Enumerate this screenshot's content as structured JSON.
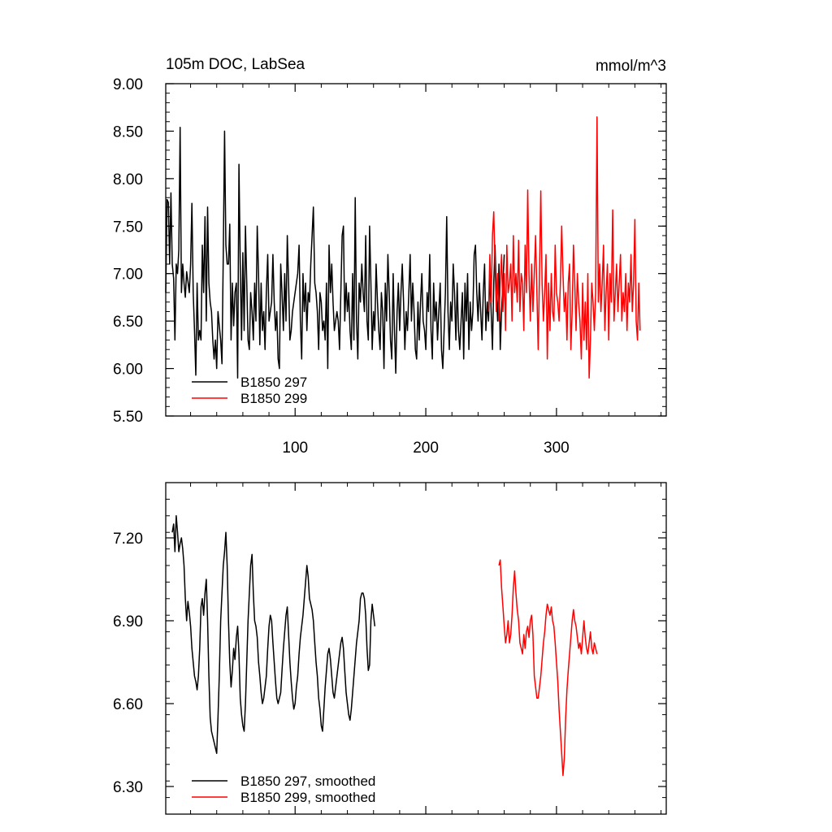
{
  "chart_data": [
    {
      "type": "line",
      "title": "105m DOC, LabSea",
      "units": "mmol/m^3",
      "xlabel": "",
      "ylabel": "",
      "xlim": [
        1,
        384
      ],
      "ylim": [
        5.5,
        9.0
      ],
      "xticks": [
        100,
        200,
        300
      ],
      "xticklabels": [
        "100",
        "200",
        "300"
      ],
      "yticks": [
        5.5,
        6.0,
        6.5,
        7.0,
        7.5,
        8.0,
        8.5,
        9.0
      ],
      "yticklabels": [
        "5.50",
        "6.00",
        "6.50",
        "7.00",
        "7.50",
        "8.00",
        "8.50",
        "9.00"
      ],
      "legend_position": "bottom-left",
      "series": [
        {
          "name": "B1850 297",
          "color": "#000000",
          "x_start": 1,
          "values": [
            6.8,
            7.78,
            7.75,
            7.1,
            7.85,
            7.1,
            6.95,
            6.3,
            7.1,
            7.0,
            7.25,
            8.54,
            6.8,
            7.1,
            6.9,
            6.75,
            7.02,
            6.92,
            6.8,
            7.1,
            7.74,
            6.8,
            6.4,
            5.93,
            6.9,
            6.3,
            6.4,
            6.3,
            7.3,
            6.8,
            7.6,
            6.5,
            7.7,
            6.9,
            6.7,
            6.6,
            6.3,
            6.1,
            6.3,
            6.0,
            6.6,
            6.45,
            6.3,
            6.05,
            7.2,
            8.5,
            7.3,
            7.1,
            7.1,
            7.52,
            6.3,
            6.9,
            6.45,
            6.8,
            6.9,
            5.9,
            8.15,
            7.1,
            6.3,
            7.22,
            6.4,
            7.5,
            6.9,
            6.3,
            6.2,
            6.8,
            6.6,
            6.3,
            6.9,
            6.5,
            7.5,
            7.0,
            6.25,
            6.9,
            6.4,
            6.6,
            6.2,
            6.8,
            7.2,
            6.5,
            6.6,
            6.7,
            7.2,
            6.7,
            6.4,
            6.6,
            6.1,
            6.0,
            7.1,
            6.8,
            6.4,
            7.0,
            6.5,
            7.4,
            6.9,
            6.3,
            6.4,
            6.6,
            6.7,
            6.8,
            6.9,
            7.0,
            7.3,
            6.5,
            6.1,
            7.0,
            6.6,
            6.9,
            6.4,
            6.8,
            6.7,
            7.1,
            7.4,
            7.7,
            6.9,
            6.8,
            6.6,
            6.2,
            6.8,
            6.7,
            6.4,
            6.5,
            6.3,
            6.9,
            6.0,
            7.3,
            6.8,
            7.1,
            6.7,
            6.4,
            6.5,
            6.6,
            6.5,
            6.2,
            6.8,
            7.4,
            7.5,
            6.5,
            6.9,
            6.6,
            6.8,
            6.4,
            6.2,
            7.0,
            6.3,
            7.8,
            6.5,
            6.1,
            6.9,
            6.7,
            7.1,
            6.8,
            6.6,
            7.4,
            6.5,
            6.3,
            7.5,
            6.9,
            6.2,
            6.6,
            6.4,
            7.1,
            6.7,
            6.4,
            6.2,
            6.8,
            6.6,
            6.0,
            6.9,
            6.5,
            7.2,
            6.8,
            6.3,
            6.1,
            7.0,
            6.4,
            5.95,
            6.6,
            6.9,
            6.4,
            6.8,
            7.1,
            6.7,
            6.2,
            6.6,
            6.4,
            6.8,
            7.2,
            6.5,
            6.9,
            6.6,
            6.2,
            6.1,
            6.7,
            6.3,
            6.7,
            7.0,
            6.5,
            6.4,
            6.2,
            6.8,
            6.6,
            7.2,
            6.4,
            6.1,
            6.9,
            6.5,
            6.7,
            6.3,
            6.6,
            6.9,
            6.2,
            6.0,
            6.4,
            6.8,
            7.6,
            6.6,
            6.2,
            6.7,
            6.5,
            7.1,
            6.8,
            6.3,
            6.9,
            6.4,
            6.2,
            6.5,
            6.8,
            6.1,
            6.9,
            6.5,
            7.0,
            6.2,
            6.7,
            6.4,
            6.6,
            7.2,
            7.3,
            6.8,
            6.5,
            6.9,
            6.6,
            6.3,
            6.8,
            7.1,
            6.4,
            6.7,
            6.5,
            7.0,
            6.6,
            6.2,
            6.9,
            7.3,
            6.8,
            6.5,
            7.1,
            6.2,
            6.6,
            6.9,
            7.2
          ]
        },
        {
          "name": "B1850 299",
          "color": "#ff0000",
          "x_start": 248,
          "values": [
            6.6,
            7.2,
            6.7,
            7.4,
            7.65,
            7.1,
            6.6,
            7.0,
            6.5,
            6.9,
            7.2,
            6.6,
            7.0,
            6.4,
            7.3,
            6.8,
            6.9,
            7.1,
            6.5,
            7.4,
            6.8,
            7.0,
            6.7,
            7.35,
            6.6,
            7.0,
            6.9,
            6.4,
            7.3,
            6.8,
            7.88,
            7.0,
            6.5,
            7.1,
            6.6,
            7.0,
            7.4,
            6.8,
            6.2,
            7.0,
            7.87,
            6.9,
            6.5,
            6.8,
            7.2,
            6.1,
            6.9,
            6.4,
            7.0,
            6.6,
            6.5,
            7.3,
            6.8,
            6.7,
            6.5,
            6.9,
            7.5,
            7.0,
            6.6,
            6.8,
            6.3,
            6.9,
            7.1,
            6.2,
            6.6,
            7.3,
            6.9,
            6.4,
            7.0,
            6.7,
            6.5,
            6.1,
            6.9,
            6.3,
            6.7,
            6.2,
            7.0,
            5.9,
            6.3,
            6.9,
            6.7,
            6.4,
            6.8,
            8.65,
            6.7,
            7.1,
            6.6,
            6.9,
            7.3,
            6.4,
            6.8,
            7.1,
            6.3,
            7.0,
            6.7,
            7.67,
            6.5,
            6.8,
            7.1,
            6.6,
            6.9,
            7.2,
            6.5,
            6.8,
            6.6,
            7.0,
            6.4,
            6.9,
            6.7,
            7.2,
            6.6,
            6.9,
            7.57,
            6.5,
            6.3,
            6.9,
            6.4
          ]
        }
      ]
    },
    {
      "type": "line",
      "title": "",
      "xlabel": "",
      "ylabel": "",
      "xlim": [
        1,
        384
      ],
      "ylim": [
        6.2,
        7.4
      ],
      "xticks": [
        100,
        200,
        300
      ],
      "xticklabels": [],
      "yticks": [
        6.3,
        6.6,
        6.9,
        7.2
      ],
      "yticklabels": [
        "6.30",
        "6.60",
        "6.90",
        "7.20"
      ],
      "legend_position": "bottom-left",
      "series": [
        {
          "name": "B1850 297, smoothed",
          "color": "#000000",
          "x_start": 6,
          "values": [
            7.22,
            7.25,
            7.15,
            7.28,
            7.22,
            7.15,
            7.18,
            7.2,
            7.16,
            7.1,
            6.98,
            6.9,
            6.97,
            6.93,
            6.88,
            6.8,
            6.75,
            6.7,
            6.68,
            6.65,
            6.7,
            6.8,
            6.95,
            6.98,
            6.92,
            7.0,
            7.05,
            6.9,
            6.7,
            6.55,
            6.5,
            6.48,
            6.46,
            6.44,
            6.42,
            6.55,
            6.7,
            6.9,
            7.0,
            7.1,
            7.15,
            7.22,
            7.1,
            6.9,
            6.75,
            6.66,
            6.72,
            6.8,
            6.76,
            6.84,
            6.88,
            6.78,
            6.62,
            6.56,
            6.52,
            6.5,
            6.6,
            6.75,
            6.9,
            7.0,
            7.1,
            7.14,
            7.0,
            6.9,
            6.88,
            6.84,
            6.75,
            6.7,
            6.64,
            6.6,
            6.62,
            6.66,
            6.7,
            6.8,
            6.88,
            6.92,
            6.9,
            6.82,
            6.75,
            6.68,
            6.62,
            6.6,
            6.62,
            6.64,
            6.72,
            6.8,
            6.86,
            6.92,
            6.95,
            6.85,
            6.75,
            6.68,
            6.62,
            6.58,
            6.6,
            6.66,
            6.7,
            6.78,
            6.84,
            6.88,
            6.92,
            6.98,
            7.04,
            7.1,
            7.06,
            6.98,
            6.96,
            6.94,
            6.9,
            6.82,
            6.75,
            6.7,
            6.62,
            6.58,
            6.52,
            6.5,
            6.58,
            6.66,
            6.72,
            6.78,
            6.8,
            6.76,
            6.7,
            6.64,
            6.62,
            6.66,
            6.7,
            6.74,
            6.78,
            6.82,
            6.84,
            6.8,
            6.72,
            6.64,
            6.6,
            6.56,
            6.54,
            6.58,
            6.64,
            6.7,
            6.76,
            6.82,
            6.86,
            6.9,
            6.98,
            7.0,
            7.0,
            6.98,
            6.92,
            6.8,
            6.72,
            6.74,
            6.9,
            6.96,
            6.92,
            6.88
          ]
        },
        {
          "name": "B1850 299, smoothed",
          "color": "#ff0000",
          "x_start": 256,
          "values": [
            7.1,
            7.12,
            7.02,
            6.95,
            6.88,
            6.82,
            6.85,
            6.9,
            6.82,
            6.85,
            6.92,
            7.02,
            7.08,
            7.0,
            6.94,
            6.9,
            6.82,
            6.8,
            6.78,
            6.85,
            6.8,
            6.86,
            6.88,
            6.84,
            6.9,
            6.92,
            6.85,
            6.7,
            6.66,
            6.62,
            6.62,
            6.66,
            6.7,
            6.76,
            6.82,
            6.86,
            6.92,
            6.96,
            6.94,
            6.92,
            6.95,
            6.9,
            6.88,
            6.82,
            6.75,
            6.68,
            6.58,
            6.5,
            6.42,
            6.34,
            6.4,
            6.55,
            6.65,
            6.72,
            6.78,
            6.84,
            6.9,
            6.94,
            6.9,
            6.88,
            6.84,
            6.8,
            6.82,
            6.78,
            6.84,
            6.9,
            6.84,
            6.8,
            6.78,
            6.82,
            6.86,
            6.8,
            6.78,
            6.82,
            6.8,
            6.78
          ]
        }
      ]
    }
  ]
}
